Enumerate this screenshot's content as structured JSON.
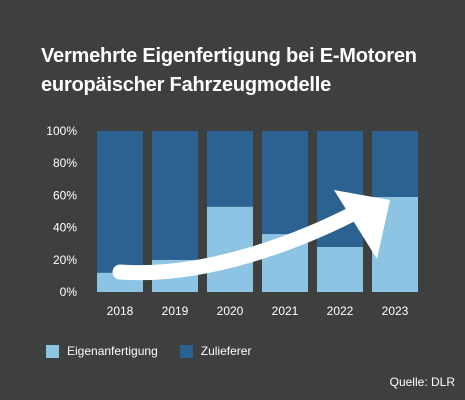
{
  "title_line1": "Vermehrte Eigenfertigung bei E-Motoren",
  "title_line2": "europäischer Fahrzeugmodelle",
  "source": "Quelle: DLR",
  "colors": {
    "background": "#3e3f3f",
    "own": "#8dc3e3",
    "supplier": "#2c6291",
    "arrow": "#ffffff"
  },
  "chart_data": {
    "type": "bar",
    "stacked": true,
    "categories": [
      "2018",
      "2019",
      "2020",
      "2021",
      "2022",
      "2023"
    ],
    "series": [
      {
        "name": "Eigenanfertigung",
        "values": [
          12,
          20,
          53,
          36,
          28,
          59
        ]
      },
      {
        "name": "Zulieferer",
        "values": [
          88,
          80,
          47,
          64,
          72,
          41
        ]
      }
    ],
    "yticks": [
      "0%",
      "20%",
      "40%",
      "60%",
      "80%",
      "100%"
    ],
    "ylim": [
      0,
      100
    ],
    "annotation": "white upward-curving arrow across the bars indicating a rising trend",
    "grid": false,
    "legend": "bottom-left"
  }
}
